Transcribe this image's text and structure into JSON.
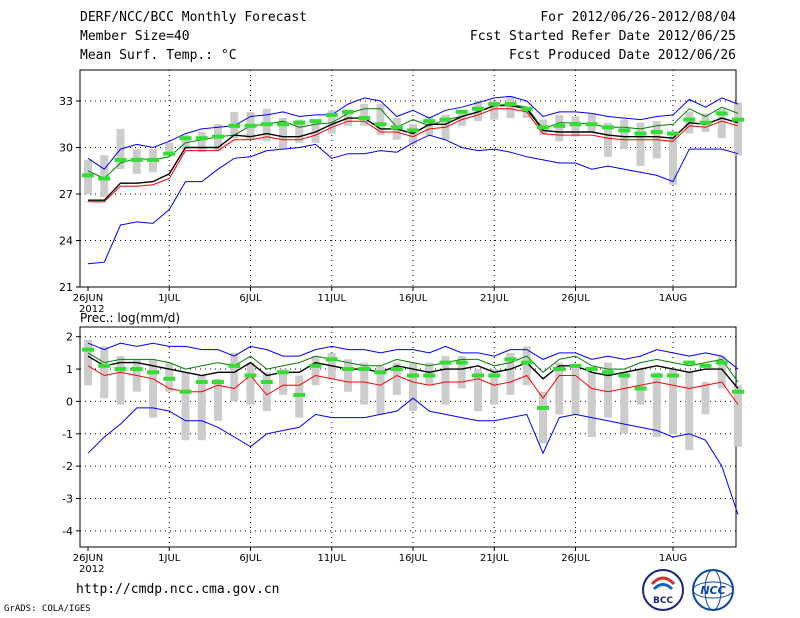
{
  "header": {
    "title": "DERF/NCC/BCC Monthly Forecast",
    "members": "Member Size=40",
    "variable": "Mean Surf. Temp.: °C",
    "period": "For 2012/06/26-2012/08/04",
    "started": "Fcst Started Refer Date 2012/06/25",
    "produced": "Fcst Produced Date 2012/06/26"
  },
  "footer": {
    "url": "http://cmdp.ncc.cma.gov.cn",
    "grads": "GrADS: COLA/IGES"
  },
  "logos": {
    "bcc": "BCC",
    "ncc": "NCC"
  },
  "colors": {
    "max": "#0000ff",
    "min": "#0000ff",
    "upper": "#008000",
    "lower": "#ff0000",
    "mean": "#000000",
    "median": "#33dd33",
    "box": "#cccccc",
    "grid": "#000000"
  },
  "chart_data": [
    {
      "type": "line",
      "title": "Mean Surf. Temp.: °C",
      "x_tick_labels": [
        "26JUN",
        "1JUL",
        "6JUL",
        "11JUL",
        "16JUL",
        "21JUL",
        "26JUL",
        "1AUG"
      ],
      "x_year_label": "2012",
      "ylim": [
        21,
        35
      ],
      "yticks": [
        21,
        24,
        27,
        30,
        33
      ],
      "series": [
        {
          "name": "max",
          "values": [
            29.3,
            28.6,
            29.9,
            30.2,
            30.0,
            30.4,
            30.9,
            31.2,
            31.3,
            31.4,
            32.0,
            32.1,
            32.3,
            32.0,
            32.1,
            32.1,
            32.8,
            33.2,
            33.0,
            32.0,
            32.4,
            31.9,
            32.4,
            32.6,
            32.9,
            33.2,
            33.3,
            33.0,
            32.0,
            32.3,
            32.3,
            32.2,
            32.0,
            31.9,
            31.8,
            32.0,
            32.1,
            33.1,
            32.6,
            33.2,
            32.8
          ]
        },
        {
          "name": "upper",
          "values": [
            28.5,
            28.0,
            29.0,
            29.3,
            29.2,
            29.4,
            30.3,
            30.5,
            30.7,
            30.8,
            31.4,
            31.5,
            31.7,
            31.3,
            31.5,
            31.6,
            32.2,
            32.5,
            32.5,
            31.3,
            31.8,
            31.4,
            31.8,
            32.0,
            32.3,
            32.7,
            32.8,
            32.6,
            31.2,
            31.6,
            31.6,
            31.5,
            31.3,
            31.3,
            31.2,
            31.4,
            31.5,
            32.5,
            32.0,
            32.6,
            32.2
          ]
        },
        {
          "name": "mean",
          "values": [
            26.6,
            26.6,
            27.7,
            27.7,
            27.8,
            28.3,
            30.0,
            30.0,
            30.0,
            30.8,
            30.7,
            30.9,
            30.7,
            30.7,
            31.0,
            31.5,
            31.9,
            31.9,
            31.2,
            31.2,
            30.9,
            31.5,
            31.5,
            32.0,
            32.3,
            32.7,
            32.7,
            32.5,
            31.1,
            31.0,
            31.0,
            31.0,
            30.8,
            30.7,
            30.7,
            30.7,
            30.6,
            31.6,
            31.5,
            31.9,
            31.6
          ]
        },
        {
          "name": "lower",
          "values": [
            26.5,
            26.5,
            27.5,
            27.5,
            27.6,
            28.0,
            29.8,
            29.8,
            29.8,
            30.5,
            30.5,
            30.7,
            30.5,
            30.5,
            30.8,
            31.3,
            31.7,
            31.7,
            31.0,
            31.0,
            30.7,
            31.2,
            31.3,
            31.8,
            32.1,
            32.5,
            32.5,
            32.3,
            30.9,
            30.8,
            30.8,
            30.8,
            30.6,
            30.5,
            30.5,
            30.5,
            30.4,
            31.4,
            31.3,
            31.7,
            31.4
          ]
        },
        {
          "name": "min",
          "values": [
            22.5,
            22.6,
            25.0,
            25.2,
            25.1,
            26.0,
            27.8,
            27.8,
            28.6,
            29.3,
            29.4,
            29.8,
            29.9,
            30.0,
            30.2,
            29.3,
            29.6,
            29.6,
            29.8,
            29.7,
            30.3,
            30.8,
            30.5,
            30.0,
            29.8,
            29.9,
            29.7,
            29.4,
            29.2,
            29.0,
            29.0,
            28.6,
            28.8,
            28.6,
            28.4,
            28.2,
            27.8,
            29.9,
            29.9,
            29.9,
            29.6
          ]
        },
        {
          "name": "median",
          "values": [
            28.2,
            28.0,
            29.2,
            29.2,
            29.2,
            29.6,
            30.6,
            30.6,
            30.7,
            31.4,
            31.4,
            31.5,
            31.5,
            31.6,
            31.7,
            32.1,
            32.3,
            31.9,
            31.5,
            31.3,
            31.1,
            31.7,
            31.8,
            32.3,
            32.5,
            32.8,
            32.8,
            32.5,
            31.3,
            31.4,
            31.5,
            31.5,
            31.3,
            31.1,
            30.9,
            31.0,
            30.9,
            31.8,
            31.6,
            32.2,
            31.8
          ]
        }
      ],
      "boxes": [
        [
          27.0,
          29.2
        ],
        [
          26.8,
          29.5
        ],
        [
          28.6,
          31.2
        ],
        [
          28.3,
          29.9
        ],
        [
          28.4,
          29.9
        ],
        [
          29.7,
          30.3
        ],
        [
          29.9,
          30.8
        ],
        [
          29.7,
          31.0
        ],
        [
          29.8,
          31.5
        ],
        [
          30.6,
          32.3
        ],
        [
          30.5,
          32.3
        ],
        [
          30.4,
          32.5
        ],
        [
          29.9,
          31.9
        ],
        [
          30.3,
          31.8
        ],
        [
          30.3,
          31.8
        ],
        [
          30.9,
          32.4
        ],
        [
          31.4,
          32.4
        ],
        [
          31.4,
          32.8
        ],
        [
          30.8,
          32.8
        ],
        [
          30.5,
          31.9
        ],
        [
          30.2,
          31.5
        ],
        [
          30.8,
          32.0
        ],
        [
          30.5,
          32.1
        ],
        [
          31.4,
          32.4
        ],
        [
          31.7,
          33.0
        ],
        [
          31.8,
          33.0
        ],
        [
          31.9,
          33.3
        ],
        [
          31.9,
          32.4
        ],
        [
          30.8,
          31.8
        ],
        [
          30.4,
          32.1
        ],
        [
          30.7,
          32.0
        ],
        [
          31.0,
          32.2
        ],
        [
          29.4,
          31.6
        ],
        [
          29.9,
          31.8
        ],
        [
          28.8,
          31.6
        ],
        [
          29.3,
          31.7
        ],
        [
          27.6,
          31.0
        ],
        [
          30.9,
          32.3
        ],
        [
          31.0,
          32.2
        ],
        [
          30.6,
          32.5
        ],
        [
          29.5,
          32.9
        ]
      ]
    },
    {
      "type": "line",
      "title": "Prec.: log(mm/d)",
      "x_tick_labels": [
        "26JUN",
        "1JUL",
        "6JUL",
        "11JUL",
        "16JUL",
        "21JUL",
        "26JUL",
        "1AUG"
      ],
      "x_year_label": "2012",
      "ylim": [
        -4.5,
        2.3
      ],
      "yticks": [
        -4,
        -3,
        -2,
        -1,
        0,
        1,
        2
      ],
      "series": [
        {
          "name": "max",
          "values": [
            1.8,
            1.6,
            1.8,
            1.7,
            1.8,
            1.7,
            1.7,
            1.6,
            1.6,
            1.4,
            1.7,
            1.6,
            1.4,
            1.4,
            1.6,
            1.7,
            1.6,
            1.6,
            1.5,
            1.6,
            1.6,
            1.5,
            1.7,
            1.5,
            1.5,
            1.4,
            1.6,
            1.6,
            1.3,
            1.5,
            1.5,
            1.3,
            1.4,
            1.3,
            1.4,
            1.6,
            1.5,
            1.4,
            1.5,
            1.4,
            1.0
          ]
        },
        {
          "name": "upper",
          "values": [
            1.5,
            1.2,
            1.3,
            1.3,
            1.3,
            1.2,
            1.0,
            1.1,
            1.2,
            1.1,
            1.4,
            1.0,
            1.1,
            1.2,
            1.4,
            1.3,
            1.2,
            1.1,
            1.1,
            1.3,
            1.2,
            1.1,
            1.2,
            1.3,
            1.3,
            1.1,
            1.2,
            1.4,
            0.9,
            1.3,
            1.4,
            1.1,
            1.0,
            1.0,
            1.2,
            1.3,
            1.2,
            1.1,
            1.2,
            1.3,
            0.6
          ]
        },
        {
          "name": "mean",
          "values": [
            1.4,
            1.1,
            1.2,
            1.2,
            1.1,
            1.0,
            0.9,
            0.8,
            0.9,
            0.9,
            1.2,
            0.8,
            0.9,
            0.9,
            1.2,
            1.1,
            1.0,
            1.0,
            0.9,
            1.1,
            1.0,
            0.9,
            1.0,
            1.0,
            1.1,
            0.9,
            1.0,
            1.2,
            0.7,
            1.1,
            1.1,
            0.9,
            0.8,
            0.9,
            1.0,
            1.1,
            1.0,
            0.9,
            1.0,
            1.0,
            0.4
          ]
        },
        {
          "name": "lower",
          "values": [
            1.1,
            0.8,
            0.9,
            0.8,
            0.7,
            0.4,
            0.3,
            0.3,
            0.5,
            0.4,
            0.8,
            0.2,
            0.5,
            0.5,
            0.8,
            0.7,
            0.6,
            0.6,
            0.5,
            0.8,
            0.6,
            0.5,
            0.6,
            0.6,
            0.7,
            0.5,
            0.6,
            0.8,
            0.1,
            0.8,
            0.8,
            0.4,
            0.3,
            0.4,
            0.5,
            0.6,
            0.5,
            0.4,
            0.5,
            0.6,
            -0.1
          ]
        },
        {
          "name": "min",
          "values": [
            -1.6,
            -1.1,
            -0.7,
            -0.2,
            -0.2,
            -0.3,
            -0.6,
            -0.6,
            -0.8,
            -1.1,
            -1.4,
            -1.0,
            -0.9,
            -0.8,
            -0.4,
            -0.5,
            -0.5,
            -0.5,
            -0.4,
            -0.3,
            0.1,
            -0.3,
            -0.4,
            -0.5,
            -0.6,
            -0.6,
            -0.5,
            -0.4,
            -1.6,
            -0.5,
            -0.4,
            -0.5,
            -0.6,
            -0.7,
            -0.8,
            -0.9,
            -1.1,
            -1.0,
            -1.2,
            -2.0,
            -3.5
          ]
        },
        {
          "name": "median",
          "values": [
            1.6,
            1.1,
            1.0,
            1.0,
            0.9,
            0.7,
            0.3,
            0.6,
            0.6,
            1.1,
            0.8,
            0.6,
            0.9,
            0.2,
            1.1,
            1.3,
            1.0,
            1.0,
            0.9,
            1.0,
            0.8,
            0.8,
            1.2,
            1.2,
            0.8,
            0.8,
            1.3,
            1.2,
            -0.2,
            1.0,
            1.1,
            1.0,
            0.9,
            0.8,
            0.4,
            0.8,
            0.8,
            1.2,
            1.1,
            1.2,
            0.3
          ]
        }
      ],
      "boxes": [
        [
          0.5,
          1.9
        ],
        [
          0.1,
          1.7
        ],
        [
          -0.1,
          1.4
        ],
        [
          0.3,
          1.3
        ],
        [
          -0.5,
          1.3
        ],
        [
          0.3,
          1.2
        ],
        [
          -1.2,
          0.9
        ],
        [
          -1.2,
          0.8
        ],
        [
          -0.6,
          0.7
        ],
        [
          0.0,
          1.5
        ],
        [
          -0.1,
          1.2
        ],
        [
          -0.3,
          0.9
        ],
        [
          0.2,
          1.0
        ],
        [
          -0.5,
          0.8
        ],
        [
          0.5,
          1.4
        ],
        [
          0.7,
          1.5
        ],
        [
          0.3,
          1.3
        ],
        [
          -0.1,
          1.2
        ],
        [
          -0.4,
          1.1
        ],
        [
          0.2,
          1.2
        ],
        [
          -0.3,
          1.2
        ],
        [
          0.5,
          1.2
        ],
        [
          -0.1,
          1.4
        ],
        [
          0.4,
          1.4
        ],
        [
          -0.3,
          1.0
        ],
        [
          -0.1,
          1.0
        ],
        [
          0.2,
          1.5
        ],
        [
          0.5,
          1.7
        ],
        [
          -1.3,
          0.3
        ],
        [
          -0.4,
          1.2
        ],
        [
          -0.4,
          1.1
        ],
        [
          -1.1,
          0.9
        ],
        [
          -0.5,
          1.2
        ],
        [
          -1.0,
          0.9
        ],
        [
          -0.1,
          1.0
        ],
        [
          -1.1,
          0.9
        ],
        [
          -1.0,
          1.0
        ],
        [
          -1.5,
          0.9
        ],
        [
          -0.4,
          0.6
        ],
        [
          0.4,
          1.4
        ],
        [
          -1.4,
          0.5
        ]
      ]
    }
  ]
}
